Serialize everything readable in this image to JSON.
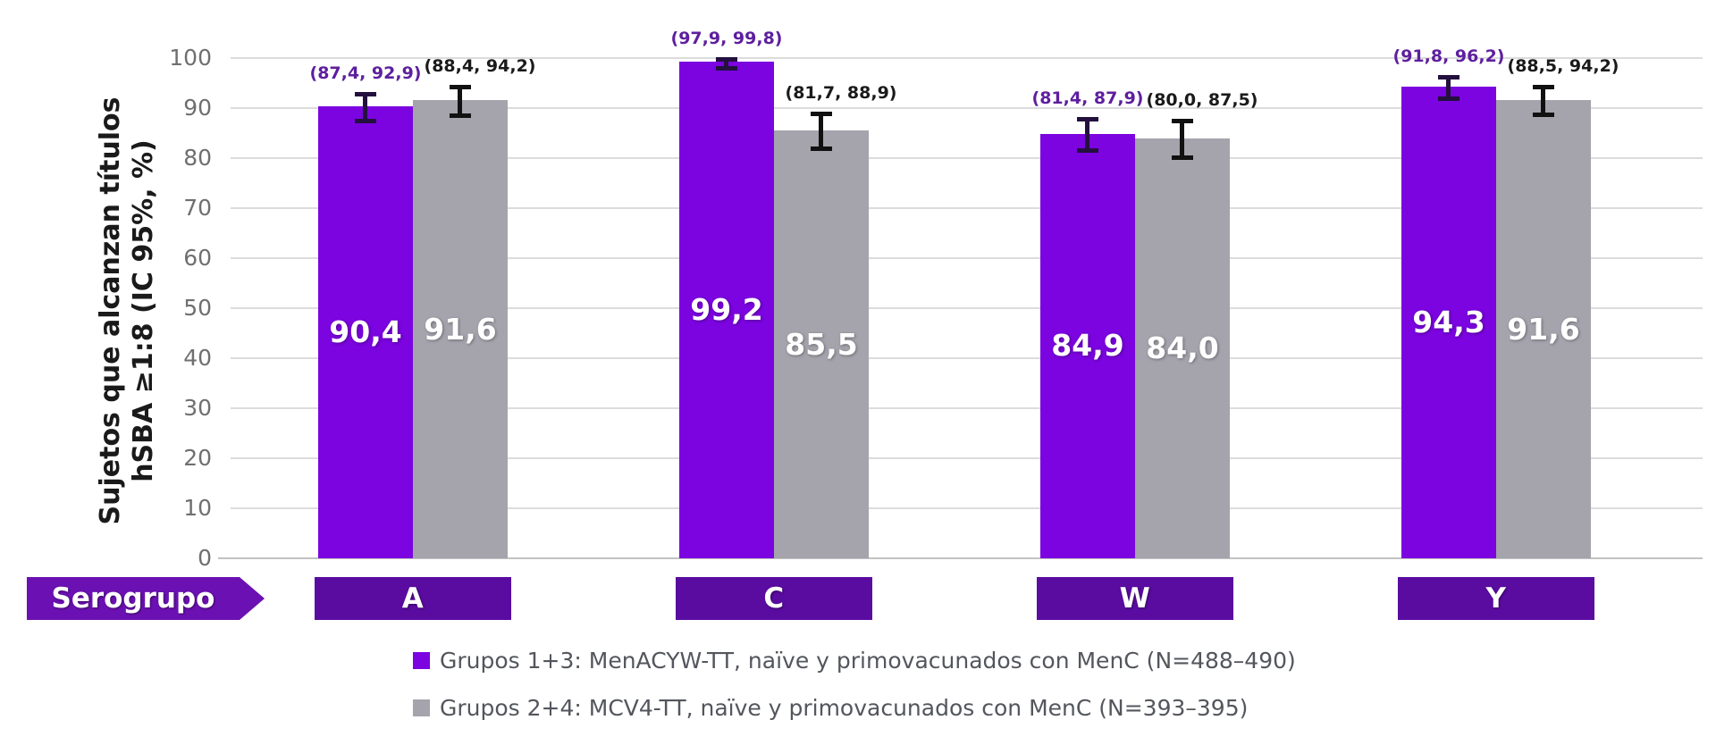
{
  "chart_data": {
    "type": "bar",
    "title": "",
    "ylabel_line1": "Sujetos que alcanzan títulos",
    "ylabel_line2": "hSBA ≥1:8 (IC 95%, %)",
    "ylim": [
      0,
      100
    ],
    "ytick_step": 10,
    "grid": true,
    "legend_position": "bottom",
    "x_axis_badge": "Serogrupo",
    "categories": [
      "A",
      "C",
      "W",
      "Y"
    ],
    "series": [
      {
        "name": "Grupos 1+3: MenACYW-TT, naïve y primovacunados con MenC (N=488–490)",
        "color": "#7B04E0",
        "error_color": "#23103E",
        "ci_text_color": "#5E1F9E",
        "values": [
          90.4,
          99.2,
          84.9,
          94.3
        ],
        "value_labels": [
          "90,4",
          "99,2",
          "84,9",
          "94,3"
        ],
        "ci_low": [
          87.4,
          97.9,
          81.4,
          91.8
        ],
        "ci_high": [
          92.9,
          99.8,
          87.9,
          96.2
        ],
        "ci_labels": [
          "(87,4, 92,9)",
          "(97,9, 99,8)",
          "(81,4, 87,9)",
          "(91,8, 96,2)"
        ]
      },
      {
        "name": "Grupos 2+4: MCV4-TT, naïve y primovacunados con MenC (N=393–395)",
        "color": "#A5A3AC",
        "error_color": "#111111",
        "ci_text_color": "#1A1A1A",
        "values": [
          91.6,
          85.5,
          84.0,
          91.6
        ],
        "value_labels": [
          "91,6",
          "85,5",
          "84,0",
          "91,6"
        ],
        "ci_low": [
          88.4,
          81.7,
          80.0,
          88.5
        ],
        "ci_high": [
          94.2,
          88.9,
          87.5,
          94.2
        ],
        "ci_labels": [
          "(88,4, 94,2)",
          "(81,7, 88,9)",
          "(80,0, 87,5)",
          "(88,5, 94,2)"
        ]
      }
    ]
  },
  "colors": {
    "bar_purple": "#7B04E0",
    "bar_gray": "#A5A3AC",
    "badge_category": "#5A0BA0",
    "badge_serogrupo": "#6B10B2",
    "gridline": "#DCDCDC",
    "axis_line": "#C2C2C2",
    "tick_label": "#6F6F6F",
    "legend_text": "#53565C",
    "ylabel_text": "#1A1A1A",
    "value_label_text": "#FFFFFF"
  }
}
